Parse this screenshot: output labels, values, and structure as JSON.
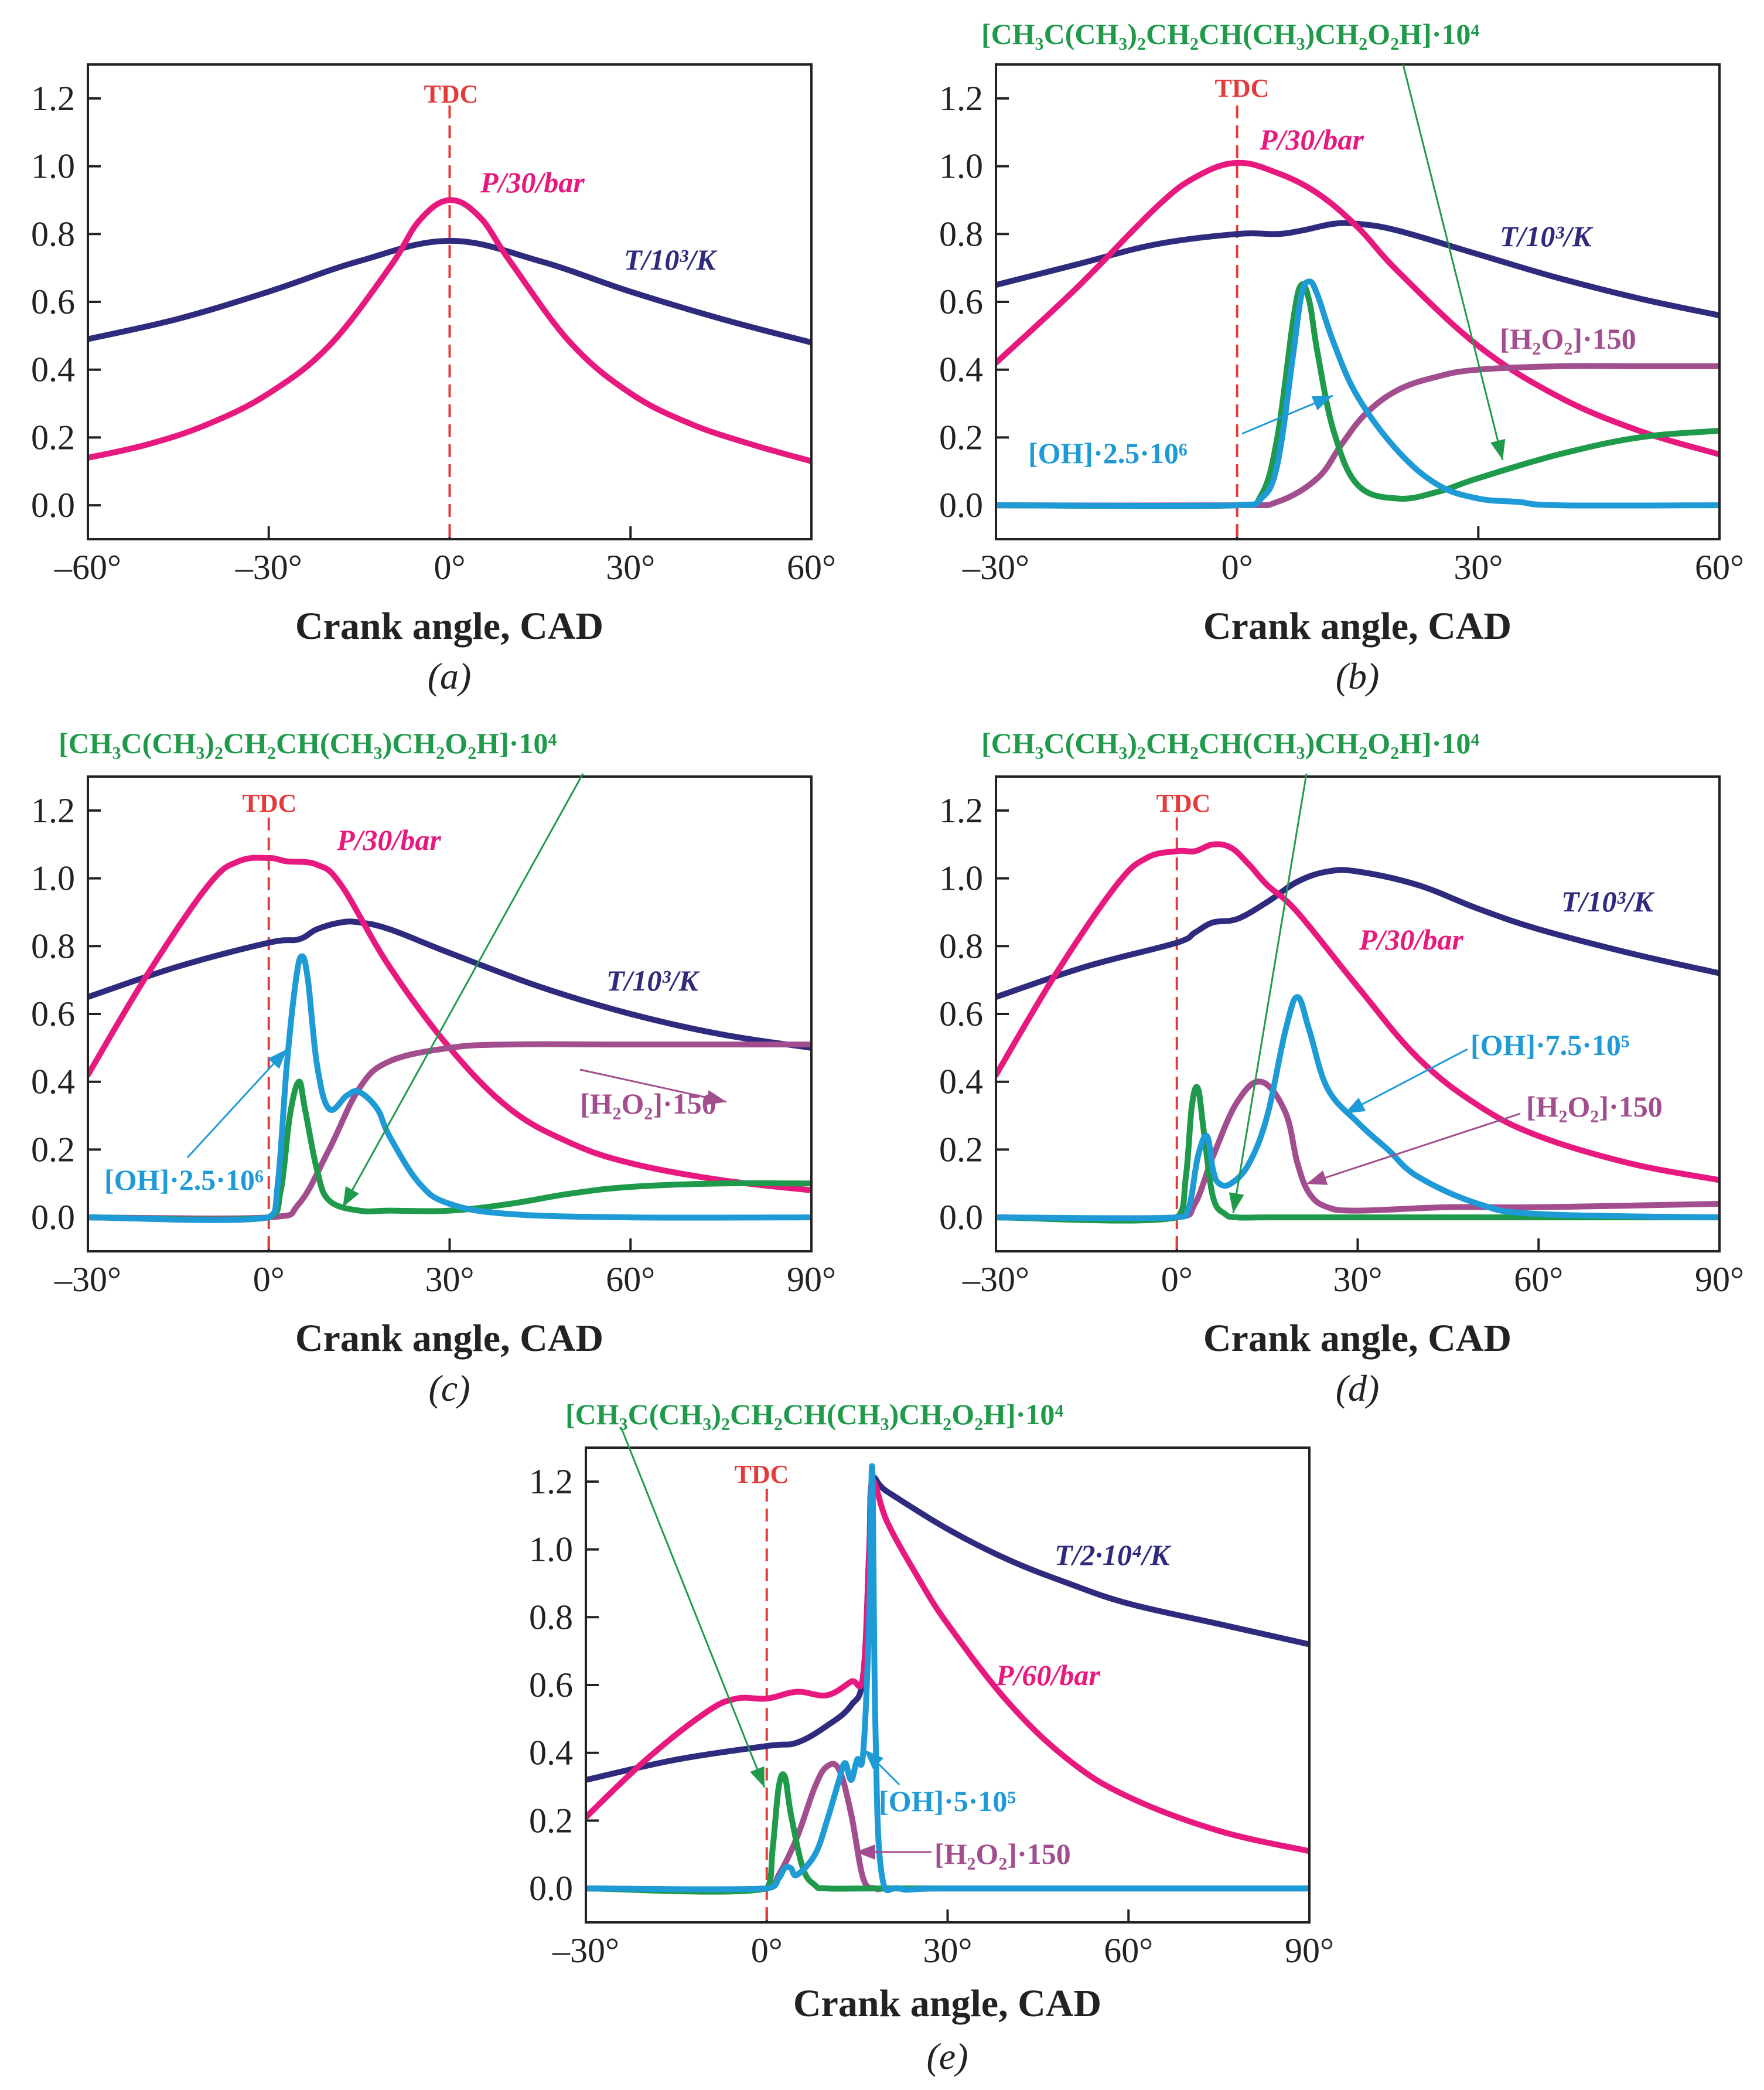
{
  "colors": {
    "P": "#E8197E",
    "T": "#2E2A7E",
    "OH": "#1E9AD6",
    "ROOH": "#1E9A4A",
    "H2O2": "#A24E8E",
    "tdc": "#E53A3A",
    "axis": "#222222"
  },
  "chart_data": [
    {
      "panel": "(a)",
      "type": "line",
      "xlabel": "Crank angle, CAD",
      "xlim": [
        -60,
        60
      ],
      "ylim": [
        -0.1,
        1.3
      ],
      "xticks": [
        -60,
        -30,
        0,
        30,
        60
      ],
      "xtick_labels": [
        "–60°",
        "–30°",
        "0°",
        "30°",
        "60°"
      ],
      "yticks": [
        0,
        0.2,
        0.4,
        0.6,
        0.8,
        1.0,
        1.2
      ],
      "ytick_labels": [
        "0.0",
        "0.2",
        "0.4",
        "0.6",
        "0.8",
        "1.0",
        "1.2"
      ],
      "tdc": {
        "x": 0,
        "label": "TDC"
      },
      "series": [
        {
          "key": "P",
          "name": "P/30/bar",
          "x": [
            -60,
            -50,
            -40,
            -30,
            -20,
            -10,
            -5,
            0,
            5,
            10,
            20,
            30,
            40,
            50,
            60
          ],
          "values": [
            0.14,
            0.18,
            0.24,
            0.33,
            0.47,
            0.7,
            0.84,
            0.9,
            0.85,
            0.72,
            0.48,
            0.33,
            0.24,
            0.18,
            0.13
          ]
        },
        {
          "key": "T",
          "name": "T/10³/K",
          "x": [
            -60,
            -45,
            -30,
            -15,
            0,
            15,
            30,
            45,
            60
          ],
          "values": [
            0.49,
            0.55,
            0.63,
            0.72,
            0.78,
            0.72,
            0.63,
            0.55,
            0.48
          ]
        }
      ]
    },
    {
      "panel": "(b)",
      "type": "line",
      "xlabel": "Crank angle, CAD",
      "xlim": [
        -30,
        60
      ],
      "ylim": [
        -0.1,
        1.3
      ],
      "xticks": [
        -30,
        0,
        30,
        60
      ],
      "xtick_labels": [
        "–30°",
        "0°",
        "30°",
        "60°"
      ],
      "yticks": [
        0,
        0.2,
        0.4,
        0.6,
        0.8,
        1.0,
        1.2
      ],
      "ytick_labels": [
        "0.0",
        "0.2",
        "0.4",
        "0.6",
        "0.8",
        "1.0",
        "1.2"
      ],
      "tdc": {
        "x": 0,
        "label": "TDC"
      },
      "series": [
        {
          "key": "P",
          "name": "P/30/bar",
          "x": [
            -30,
            -20,
            -10,
            -5,
            0,
            5,
            10,
            15,
            20,
            30,
            40,
            50,
            60
          ],
          "values": [
            0.42,
            0.64,
            0.88,
            0.97,
            1.01,
            0.98,
            0.92,
            0.82,
            0.69,
            0.47,
            0.32,
            0.22,
            0.15
          ]
        },
        {
          "key": "T",
          "name": "T/10³/K",
          "x": [
            -30,
            -20,
            -10,
            0,
            5,
            8,
            12,
            15,
            20,
            30,
            40,
            50,
            60
          ],
          "values": [
            0.65,
            0.71,
            0.77,
            0.8,
            0.8,
            0.81,
            0.83,
            0.83,
            0.81,
            0.74,
            0.67,
            0.61,
            0.56
          ]
        },
        {
          "key": "ROOH",
          "name": "[CH3C(CH3)2CH2CH(CH3)CH2O2H]·10⁴",
          "x": [
            -30,
            0,
            3,
            5,
            7,
            8,
            9,
            10,
            12,
            15,
            20,
            25,
            30,
            40,
            50,
            60
          ],
          "values": [
            0,
            0,
            0.03,
            0.2,
            0.55,
            0.65,
            0.6,
            0.45,
            0.22,
            0.06,
            0.02,
            0.04,
            0.08,
            0.15,
            0.2,
            0.22
          ]
        },
        {
          "key": "OH",
          "name": "[OH]·2.5·10⁶",
          "x": [
            -30,
            0,
            3,
            5,
            7,
            8,
            9,
            10,
            12,
            15,
            20,
            25,
            30,
            35,
            40,
            60
          ],
          "values": [
            0,
            0,
            0.02,
            0.12,
            0.45,
            0.62,
            0.66,
            0.62,
            0.48,
            0.32,
            0.16,
            0.06,
            0.02,
            0.01,
            0,
            0
          ]
        },
        {
          "key": "H2O2",
          "name": "[H2O2]·150",
          "x": [
            -30,
            0,
            5,
            10,
            13,
            16,
            20,
            25,
            30,
            40,
            50,
            60
          ],
          "values": [
            0,
            0,
            0.01,
            0.08,
            0.18,
            0.27,
            0.34,
            0.38,
            0.4,
            0.41,
            0.41,
            0.41
          ]
        }
      ]
    },
    {
      "panel": "(c)",
      "type": "line",
      "xlabel": "Crank angle, CAD",
      "xlim": [
        -30,
        90
      ],
      "ylim": [
        -0.1,
        1.3
      ],
      "xticks": [
        -30,
        0,
        30,
        60,
        90
      ],
      "xtick_labels": [
        "–30°",
        "0°",
        "30°",
        "60°",
        "90°"
      ],
      "yticks": [
        0,
        0.2,
        0.4,
        0.6,
        0.8,
        1.0,
        1.2
      ],
      "ytick_labels": [
        "0.0",
        "0.2",
        "0.4",
        "0.6",
        "0.8",
        "1.0",
        "1.2"
      ],
      "tdc": {
        "x": 0,
        "label": "TDC"
      },
      "series": [
        {
          "key": "P",
          "name": "P/30/bar",
          "x": [
            -30,
            -20,
            -10,
            -5,
            0,
            3,
            8,
            12,
            20,
            30,
            40,
            50,
            60,
            75,
            90
          ],
          "values": [
            0.42,
            0.72,
            0.98,
            1.05,
            1.06,
            1.05,
            1.04,
            0.98,
            0.74,
            0.5,
            0.32,
            0.22,
            0.16,
            0.11,
            0.08
          ]
        },
        {
          "key": "T",
          "name": "T/10³/K",
          "x": [
            -30,
            -15,
            0,
            5,
            8,
            12,
            15,
            20,
            30,
            45,
            60,
            75,
            90
          ],
          "values": [
            0.65,
            0.74,
            0.81,
            0.82,
            0.85,
            0.87,
            0.87,
            0.85,
            0.78,
            0.68,
            0.6,
            0.54,
            0.5
          ]
        },
        {
          "key": "ROOH",
          "name": "[CH3C(CH3)2CH2CH(CH3)CH2O2H]·10⁴",
          "x": [
            -30,
            0,
            2,
            3.5,
            5,
            6,
            8,
            10,
            15,
            20,
            30,
            40,
            50,
            60,
            75,
            90
          ],
          "values": [
            0,
            0,
            0.08,
            0.3,
            0.4,
            0.32,
            0.14,
            0.05,
            0.02,
            0.02,
            0.02,
            0.04,
            0.07,
            0.09,
            0.1,
            0.1
          ]
        },
        {
          "key": "OH",
          "name": "[OH]·2.5·10⁶",
          "x": [
            -30,
            0,
            1.5,
            3,
            4.5,
            5.5,
            6.5,
            8,
            10,
            13,
            15,
            18,
            20,
            25,
            30,
            40,
            60,
            90
          ],
          "values": [
            0,
            0,
            0.1,
            0.45,
            0.7,
            0.77,
            0.7,
            0.45,
            0.32,
            0.36,
            0.37,
            0.32,
            0.24,
            0.1,
            0.04,
            0.01,
            0,
            0
          ]
        },
        {
          "key": "H2O2",
          "name": "[H2O2]·150",
          "x": [
            -30,
            0,
            5,
            10,
            15,
            20,
            30,
            40,
            60,
            90
          ],
          "values": [
            0,
            0,
            0.04,
            0.2,
            0.38,
            0.46,
            0.5,
            0.51,
            0.51,
            0.51
          ]
        }
      ]
    },
    {
      "panel": "(d)",
      "type": "line",
      "xlabel": "Crank angle, CAD",
      "xlim": [
        -30,
        90
      ],
      "ylim": [
        -0.1,
        1.3
      ],
      "xticks": [
        -30,
        0,
        30,
        60,
        90
      ],
      "xtick_labels": [
        "–30°",
        "0°",
        "30°",
        "60°",
        "90°"
      ],
      "yticks": [
        0,
        0.2,
        0.4,
        0.6,
        0.8,
        1.0,
        1.2
      ],
      "ytick_labels": [
        "0.0",
        "0.2",
        "0.4",
        "0.6",
        "0.8",
        "1.0",
        "1.2"
      ],
      "tdc": {
        "x": 0,
        "label": "TDC"
      },
      "series": [
        {
          "key": "P",
          "name": "P/30/bar",
          "x": [
            -30,
            -20,
            -10,
            -5,
            0,
            3,
            6,
            9,
            12,
            15,
            20,
            30,
            40,
            50,
            60,
            75,
            90
          ],
          "values": [
            0.42,
            0.72,
            0.98,
            1.06,
            1.08,
            1.08,
            1.1,
            1.09,
            1.04,
            0.98,
            0.9,
            0.68,
            0.47,
            0.33,
            0.24,
            0.16,
            0.11
          ]
        },
        {
          "key": "T",
          "name": "T/10³/K",
          "x": [
            -30,
            -15,
            0,
            3,
            6,
            10,
            15,
            20,
            25,
            30,
            40,
            50,
            60,
            75,
            90
          ],
          "values": [
            0.65,
            0.74,
            0.81,
            0.84,
            0.87,
            0.88,
            0.93,
            0.99,
            1.02,
            1.02,
            0.98,
            0.91,
            0.85,
            0.78,
            0.72
          ]
        },
        {
          "key": "ROOH",
          "name": "[CH3C(CH3)2CH2CH(CH3)CH2O2H]·10⁴",
          "x": [
            -30,
            0,
            1.5,
            2.5,
            3.5,
            4.5,
            6,
            8,
            10,
            15,
            30,
            60,
            90
          ],
          "values": [
            0,
            0,
            0.12,
            0.33,
            0.38,
            0.25,
            0.06,
            0.01,
            0,
            0,
            0,
            0,
            0
          ]
        },
        {
          "key": "OH",
          "name": "[OH]·7.5·10⁵",
          "x": [
            -30,
            0,
            2,
            3.5,
            5,
            6,
            7,
            9,
            12,
            15,
            18,
            20,
            22,
            25,
            30,
            35,
            40,
            50,
            60,
            90
          ],
          "values": [
            0,
            0,
            0.03,
            0.18,
            0.24,
            0.14,
            0.1,
            0.1,
            0.16,
            0.3,
            0.55,
            0.65,
            0.55,
            0.38,
            0.28,
            0.2,
            0.12,
            0.04,
            0.01,
            0
          ]
        },
        {
          "key": "H2O2",
          "name": "[H2O2]·150",
          "x": [
            -30,
            0,
            3,
            6,
            10,
            14,
            18,
            20,
            22,
            25,
            30,
            45,
            60,
            90
          ],
          "values": [
            0,
            0,
            0.04,
            0.18,
            0.34,
            0.4,
            0.31,
            0.16,
            0.07,
            0.03,
            0.02,
            0.03,
            0.03,
            0.04
          ]
        }
      ]
    },
    {
      "panel": "(e)",
      "type": "line",
      "xlabel": "Crank angle, CAD",
      "xlim": [
        -30,
        90
      ],
      "ylim": [
        -0.1,
        1.3
      ],
      "xticks": [
        -30,
        0,
        30,
        60,
        90
      ],
      "xtick_labels": [
        "–30°",
        "0°",
        "30°",
        "60°",
        "90°"
      ],
      "yticks": [
        0,
        0.2,
        0.4,
        0.6,
        0.8,
        1.0,
        1.2
      ],
      "ytick_labels": [
        "0.0",
        "0.2",
        "0.4",
        "0.6",
        "0.8",
        "1.0",
        "1.2"
      ],
      "tdc": {
        "x": 0,
        "label": "TDC"
      },
      "series": [
        {
          "key": "P",
          "name": "P/60/bar",
          "x": [
            -30,
            -20,
            -10,
            -5,
            0,
            5,
            10,
            14,
            16,
            17,
            17.5,
            20,
            25,
            30,
            40,
            50,
            60,
            75,
            90
          ],
          "values": [
            0.21,
            0.38,
            0.52,
            0.56,
            0.56,
            0.58,
            0.57,
            0.61,
            0.63,
            1.0,
            1.2,
            1.08,
            0.92,
            0.78,
            0.55,
            0.38,
            0.27,
            0.17,
            0.11
          ]
        },
        {
          "key": "T",
          "name": "T/2·10⁴/K",
          "x": [
            -30,
            -15,
            0,
            5,
            10,
            14,
            16,
            17,
            17.5,
            20,
            30,
            40,
            50,
            60,
            75,
            90
          ],
          "values": [
            0.32,
            0.38,
            0.42,
            0.43,
            0.48,
            0.54,
            0.63,
            1.0,
            1.2,
            1.17,
            1.06,
            0.97,
            0.9,
            0.84,
            0.78,
            0.72
          ]
        },
        {
          "key": "ROOH",
          "name": "[CH3C(CH3)2CH2CH(CH3)CH2O2H]·10⁴",
          "x": [
            -30,
            0,
            1,
            2,
            3,
            4,
            6,
            8,
            10,
            20,
            90
          ],
          "values": [
            0,
            0,
            0.12,
            0.3,
            0.33,
            0.22,
            0.06,
            0.01,
            0,
            0,
            0
          ]
        },
        {
          "key": "OH",
          "name": "[OH]·5·10⁵",
          "x": [
            -30,
            0,
            2,
            3,
            4,
            5,
            8,
            10,
            12,
            13,
            14,
            15,
            16,
            17,
            17.5,
            18,
            19,
            22,
            30,
            90
          ],
          "values": [
            0,
            0,
            0.03,
            0.06,
            0.06,
            0.04,
            0.1,
            0.2,
            0.32,
            0.37,
            0.32,
            0.38,
            0.4,
            0.8,
            1.24,
            0.5,
            0.05,
            0,
            0,
            0
          ]
        },
        {
          "key": "H2O2",
          "name": "[H2O2]·150",
          "x": [
            -30,
            0,
            2,
            5,
            8,
            10,
            12,
            14,
            16,
            18,
            20,
            90
          ],
          "values": [
            0,
            0,
            0.04,
            0.15,
            0.3,
            0.36,
            0.35,
            0.22,
            0.03,
            0,
            0,
            0
          ]
        }
      ]
    }
  ],
  "labels": {
    "a": {
      "panel": "(a)",
      "tdc": "TDC",
      "xlabel": "Crank angle, CAD",
      "P": "P/30/bar",
      "T": "T/10³/K"
    },
    "b": {
      "panel": "(b)",
      "tdc": "TDC",
      "xlabel": "Crank angle, CAD",
      "P": "P/30/bar",
      "T": "T/10³/K",
      "ROOH": "[CH₃C(CH₃)₂CH₂CH(CH₃)CH₂O₂H]·10⁴",
      "OH": "[OH]·2.5·10⁶",
      "H2O2": "[H₂O₂]·150"
    },
    "c": {
      "panel": "(c)",
      "tdc": "TDC",
      "xlabel": "Crank angle, CAD",
      "P": "P/30/bar",
      "T": "T/10³/K",
      "ROOH": "[CH₃C(CH₃)₂CH₂CH(CH₃)CH₂O₂H]·10⁴",
      "OH": "[OH]·2.5·10⁶",
      "H2O2": "[H₂O₂]·150"
    },
    "d": {
      "panel": "(d)",
      "tdc": "TDC",
      "xlabel": "Crank angle, CAD",
      "P": "P/30/bar",
      "T": "T/10³/K",
      "ROOH": "[CH₃C(CH₃)₂CH₂CH(CH₃)CH₂O₂H]·10⁴",
      "OH": "[OH]·7.5·10⁵",
      "H2O2": "[H₂O₂]·150"
    },
    "e": {
      "panel": "(e)",
      "tdc": "TDC",
      "xlabel": "Crank angle, CAD",
      "P": "P/60/bar",
      "T": "T/2·10⁴/K",
      "ROOH": "[CH₃C(CH₃)₂CH₂CH(CH₃)CH₂O₂H]·10⁴",
      "OH": "[OH]·5·10⁵",
      "H2O2": "[H₂O₂]·150"
    }
  }
}
